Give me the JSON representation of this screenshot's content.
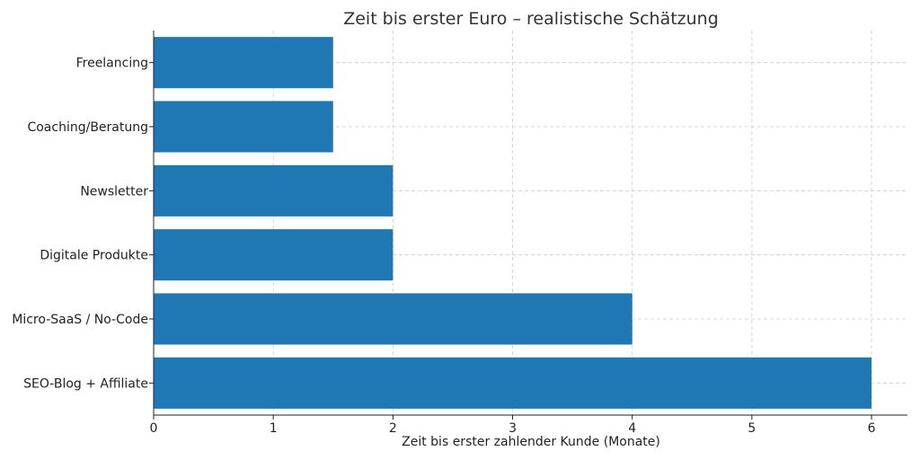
{
  "chart_data": {
    "type": "bar",
    "orientation": "horizontal",
    "title": "Zeit bis erster Euro – realistische Schätzung",
    "xlabel": "Zeit bis erster zahlender Kunde (Monate)",
    "ylabel": "",
    "categories": [
      "Freelancing",
      "Coaching/Beratung",
      "Newsletter",
      "Digitale Produkte",
      "Micro-SaaS / No-Code",
      "SEO-Blog + Affiliate"
    ],
    "values": [
      1.5,
      1.5,
      2,
      2,
      4,
      6
    ],
    "xlim": [
      0,
      6.3
    ],
    "xticks": [
      0,
      1,
      2,
      3,
      4,
      5,
      6
    ],
    "grid": true,
    "bar_color": "#1f77b4"
  }
}
